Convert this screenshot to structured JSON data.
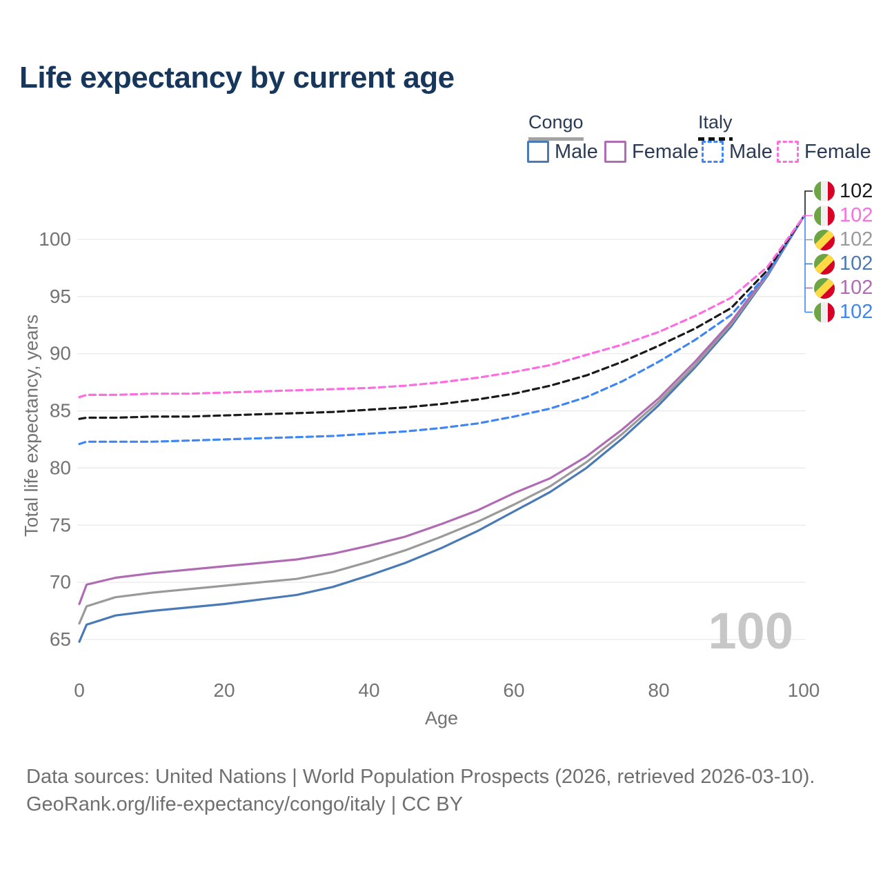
{
  "header": {
    "title": "Life expectancy by current age"
  },
  "legend": {
    "congo": {
      "label": "Congo",
      "male": "Male",
      "female": "Female"
    },
    "italy": {
      "label": "Italy",
      "male": "Male",
      "female": "Female"
    }
  },
  "axes": {
    "x_title": "Age",
    "y_title": "Total life expectancy, years"
  },
  "watermark_age": "100",
  "footer": {
    "line1": "Data sources: United Nations | World Population Prospects (2026, retrieved 2026-03-10).",
    "line2": "GeoRank.org/life-expectancy/congo/italy | CC BY"
  },
  "colors": {
    "congo_male": "#4a7ab5",
    "congo_female": "#b06cb3",
    "congo_both": "#9a9a9a",
    "italy_male": "#3f86f5",
    "italy_female": "#fb6ee0",
    "italy_both": "#1a1a1a",
    "gridline": "#e9e9e9",
    "tick_text": "#737373",
    "flag_green": "#6da544",
    "flag_red": "#d80027",
    "flag_yellow": "#ffda44",
    "flag_white": "#f0f0f0"
  },
  "end_labels": [
    {
      "series": "Italy Both",
      "value": "102",
      "flag": "italy",
      "color": "#1a1a1a"
    },
    {
      "series": "Italy Female",
      "value": "102",
      "flag": "italy",
      "color": "#fb6ee0"
    },
    {
      "series": "Congo Both",
      "value": "102",
      "flag": "congo",
      "color": "#9a9a9a"
    },
    {
      "series": "Congo Male",
      "value": "102",
      "flag": "congo",
      "color": "#4a7ab5"
    },
    {
      "series": "Congo Female",
      "value": "102",
      "flag": "congo",
      "color": "#b06cb3"
    },
    {
      "series": "Italy Male",
      "value": "102",
      "flag": "italy",
      "color": "#3f86f5"
    }
  ],
  "chart_data": {
    "type": "line",
    "title": "Life expectancy by current age",
    "xlabel": "Age",
    "ylabel": "Total life expectancy, years",
    "xlim": [
      0,
      100
    ],
    "ylim": [
      63,
      103.5
    ],
    "xticks": [
      0,
      20,
      40,
      60,
      80,
      100
    ],
    "yticks": [
      65,
      70,
      75,
      80,
      85,
      90,
      95,
      100
    ],
    "grid": "horizontal",
    "legend_position": "top-right",
    "x": [
      0,
      1,
      5,
      10,
      15,
      20,
      25,
      30,
      35,
      40,
      45,
      50,
      55,
      60,
      65,
      70,
      75,
      80,
      85,
      90,
      95,
      100
    ],
    "series": [
      {
        "name": "Congo Male",
        "country": "Congo",
        "sex": "Male",
        "style": "solid",
        "color": "#4a7ab5",
        "values": [
          64.8,
          66.3,
          67.1,
          67.5,
          67.8,
          68.1,
          68.5,
          68.9,
          69.6,
          70.6,
          71.7,
          73.0,
          74.5,
          76.2,
          77.9,
          80.0,
          82.6,
          85.5,
          88.8,
          92.4,
          96.8,
          102
        ]
      },
      {
        "name": "Congo Both",
        "country": "Congo",
        "sex": "Both",
        "style": "solid",
        "color": "#9a9a9a",
        "values": [
          66.4,
          67.9,
          68.7,
          69.1,
          69.4,
          69.7,
          70.0,
          70.3,
          70.9,
          71.8,
          72.8,
          74.0,
          75.3,
          76.8,
          78.4,
          80.5,
          83.0,
          85.8,
          89.0,
          92.6,
          96.9,
          102
        ]
      },
      {
        "name": "Congo Female",
        "country": "Congo",
        "sex": "Female",
        "style": "solid",
        "color": "#b06cb3",
        "values": [
          68.1,
          69.8,
          70.4,
          70.8,
          71.1,
          71.4,
          71.7,
          72.0,
          72.5,
          73.2,
          74.0,
          75.1,
          76.3,
          77.8,
          79.1,
          81.0,
          83.4,
          86.1,
          89.3,
          92.8,
          97.0,
          102
        ]
      },
      {
        "name": "Italy Male",
        "country": "Italy",
        "sex": "Male",
        "style": "dashed",
        "color": "#3f86f5",
        "values": [
          82.1,
          82.3,
          82.3,
          82.3,
          82.4,
          82.5,
          82.6,
          82.7,
          82.8,
          83.0,
          83.2,
          83.5,
          83.9,
          84.5,
          85.2,
          86.2,
          87.6,
          89.3,
          91.2,
          93.4,
          97.0,
          102
        ]
      },
      {
        "name": "Italy Both",
        "country": "Italy",
        "sex": "Both",
        "style": "dashed",
        "color": "#1a1a1a",
        "values": [
          84.3,
          84.4,
          84.4,
          84.5,
          84.5,
          84.6,
          84.7,
          84.8,
          84.9,
          85.1,
          85.3,
          85.6,
          86.0,
          86.5,
          87.2,
          88.1,
          89.3,
          90.7,
          92.2,
          94.0,
          97.3,
          102
        ]
      },
      {
        "name": "Italy Female",
        "country": "Italy",
        "sex": "Female",
        "style": "dashed",
        "color": "#fb6ee0",
        "values": [
          86.2,
          86.4,
          86.4,
          86.5,
          86.5,
          86.6,
          86.7,
          86.8,
          86.9,
          87.0,
          87.2,
          87.5,
          87.9,
          88.4,
          89.0,
          89.9,
          90.8,
          91.9,
          93.3,
          94.9,
          97.6,
          102
        ]
      }
    ],
    "end_value_labels": [
      "102",
      "102",
      "102",
      "102",
      "102",
      "102"
    ]
  }
}
